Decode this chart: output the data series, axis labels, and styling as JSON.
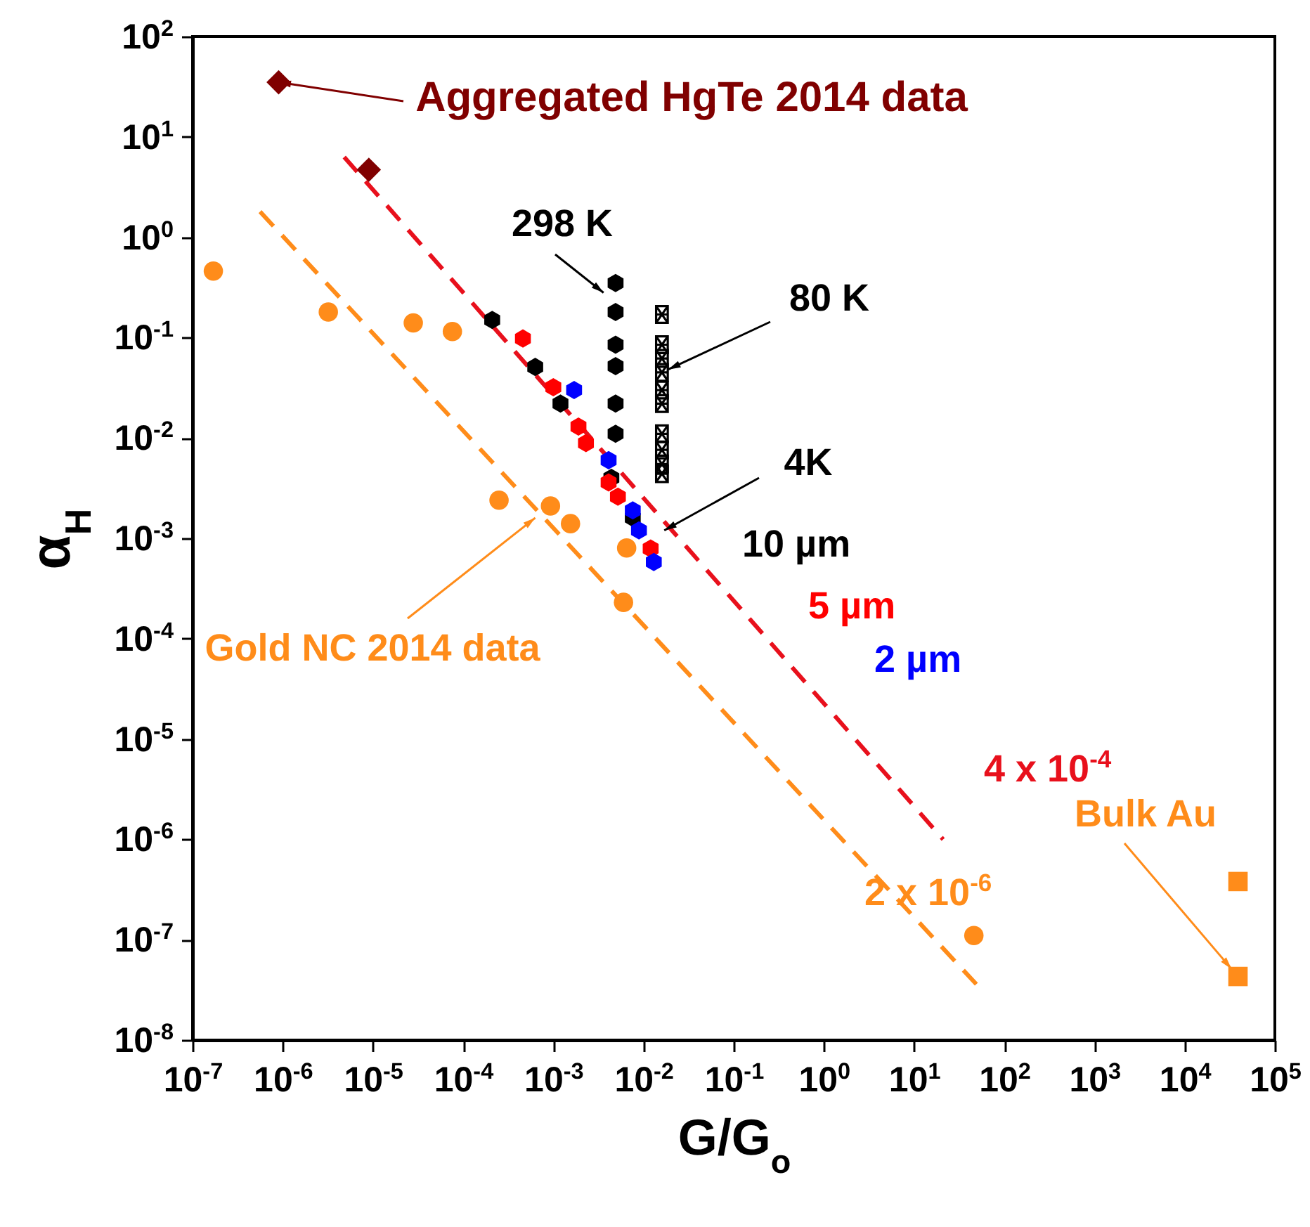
{
  "chart_data": {
    "type": "scatter",
    "xlabel": "G/G$_{o}$",
    "ylabel": "α$_{H}$",
    "log": "xy",
    "grid": false,
    "xlim": [
      1e-07,
      100000.0
    ],
    "ylim": [
      1e-08,
      100
    ],
    "xticks": [
      {
        "value": 1e-07,
        "label": "10$^{-7}$"
      },
      {
        "value": 1e-06,
        "label": "10$^{-6}$"
      },
      {
        "value": 1e-05,
        "label": "10$^{-5}$"
      },
      {
        "value": 0.0001,
        "label": "10$^{-4}$"
      },
      {
        "value": 0.001,
        "label": "10$^{-3}$"
      },
      {
        "value": 0.01,
        "label": "10$^{-2}$"
      },
      {
        "value": 0.1,
        "label": "10$^{-1}$"
      },
      {
        "value": 1,
        "label": "10$^{0}$"
      },
      {
        "value": 10,
        "label": "10$^{1}$"
      },
      {
        "value": 100,
        "label": "10$^{2}$"
      },
      {
        "value": 1000,
        "label": "10$^{3}$"
      },
      {
        "value": 10000,
        "label": "10$^{4}$"
      },
      {
        "value": 100000,
        "label": "10$^{5}$"
      }
    ],
    "yticks": [
      {
        "value": 1e-08,
        "label": "10$^{-8}$"
      },
      {
        "value": 1e-07,
        "label": "10$^{-7}$"
      },
      {
        "value": 1e-06,
        "label": "10$^{-6}$"
      },
      {
        "value": 1e-05,
        "label": "10$^{-5}$"
      },
      {
        "value": 0.0001,
        "label": "10$^{-4}$"
      },
      {
        "value": 0.001,
        "label": "10$^{-3}$"
      },
      {
        "value": 0.01,
        "label": "10$^{-2}$"
      },
      {
        "value": 0.1,
        "label": "10$^{-1}$"
      },
      {
        "value": 1,
        "label": "10$^{0}$"
      },
      {
        "value": 10,
        "label": "10$^{1}$"
      },
      {
        "value": 100,
        "label": "10$^{2}$"
      }
    ],
    "series": [
      {
        "type": "line",
        "name": "4 x 10$^{-4}$",
        "color": "#e8101c",
        "line_style": "dashed",
        "marker": "none",
        "x": [
          4.8e-06,
          21
        ],
        "values": [
          6.3,
          1e-06
        ]
      },
      {
        "type": "line",
        "name": "2 x 10$^{-6}$",
        "color": "#ff8c1a",
        "line_style": "dashed",
        "marker": "none",
        "x": [
          5.6e-07,
          49
        ],
        "values": [
          1.8,
          3.6e-08
        ]
      },
      {
        "color": "#800000",
        "marker": "diamond",
        "x": [
          9e-07,
          9e-06
        ],
        "values": [
          35,
          4.7
        ]
      },
      {
        "color": "#ff8c1a",
        "marker": "circle",
        "x": [
          1.7e-07,
          3.2e-06,
          2.8e-05,
          7.6e-05,
          0.00025,
          0.00093,
          0.00155,
          0.0065,
          0.006,
          46
        ],
        "values": [
          0.46,
          0.18,
          0.14,
          0.115,
          0.0024,
          0.0021,
          0.0014,
          0.0008,
          0.00023,
          1.1e-07
        ]
      },
      {
        "color": "#ff8c1a",
        "marker": "square",
        "x": [
          39000.0,
          39000.0
        ],
        "values": [
          3.8e-07,
          4.3e-08
        ]
      },
      {
        "color": "#000000",
        "x": [
          0.0049,
          0.0049,
          0.0049,
          0.0049,
          0.0049,
          0.0049
        ],
        "values": [
          0.35,
          0.18,
          0.085,
          0.052,
          0.022,
          0.011
        ]
      },
      {
        "color": "#000000",
        "marker": "cross",
        "x": [
          0.016,
          0.016,
          0.016,
          0.016,
          0.016,
          0.016,
          0.016,
          0.016,
          0.016,
          0.016
        ],
        "values": [
          0.17,
          0.085,
          0.062,
          0.045,
          0.03,
          0.022,
          0.011,
          0.0076,
          0.0055,
          0.0044
        ]
      },
      {
        "name": "10 µm",
        "color": "#000000",
        "x": [
          0.00021,
          0.00063,
          0.0012,
          0.0044,
          0.0076
        ],
        "values": [
          0.15,
          0.051,
          0.022,
          0.004,
          0.0016
        ]
      },
      {
        "name": "5 µm",
        "color": "#ff0000",
        "x": [
          0.00046,
          0.001,
          0.0019,
          0.0023,
          0.0041,
          0.0052,
          0.012
        ],
        "values": [
          0.098,
          0.032,
          0.013,
          0.0089,
          0.0036,
          0.0026,
          0.00079
        ]
      },
      {
        "name": "2 µm",
        "color": "#0000ff",
        "x": [
          0.0017,
          0.0041,
          0.0076,
          0.0089,
          0.013
        ],
        "values": [
          0.03,
          0.006,
          0.0019,
          0.0012,
          0.00058
        ]
      }
    ],
    "annotations": [
      {
        "text": "Aggregated HgTe 2014 data",
        "x": 9e-07,
        "y": 35
      },
      {
        "text": "298 K",
        "x": 0.0036,
        "y": 0.28
      },
      {
        "text": "80 K",
        "x": 0.016,
        "y": 0.045
      },
      {
        "text": "4K",
        "x": 0.017,
        "y": 0.0012
      },
      {
        "text": "Gold NC 2014 data",
        "x": 0.00063,
        "y": 0.0016
      },
      {
        "text": "Bulk Au",
        "x": 39000.0,
        "y": 4.3e-08
      }
    ]
  }
}
